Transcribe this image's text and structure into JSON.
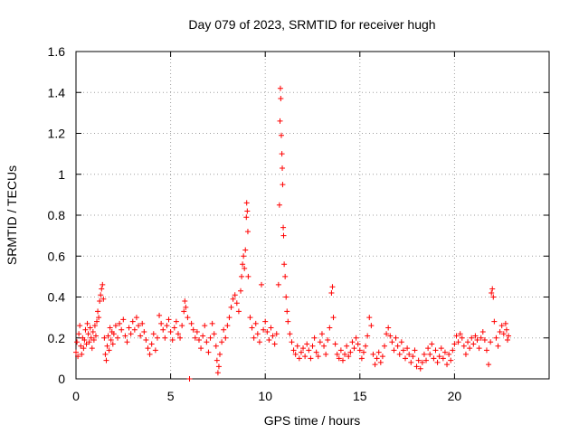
{
  "chart_data": {
    "type": "scatter",
    "title": "Day 079 of 2023, SRMTID for receiver hugh",
    "xlabel": "GPS time / hours",
    "ylabel": "SRMTID / TECUs",
    "xlim": [
      0,
      25
    ],
    "ylim": [
      0,
      1.6
    ],
    "xticks": [
      0,
      5,
      10,
      15,
      20
    ],
    "xtick_labels": [
      "0",
      "5",
      "10",
      "15",
      "20"
    ],
    "yticks": [
      0,
      0.2,
      0.4,
      0.6,
      0.8,
      1.0,
      1.2,
      1.4,
      1.6
    ],
    "ytick_labels": [
      "0",
      "0.2",
      "0.4",
      "0.6",
      "0.8",
      "1",
      "1.2",
      "1.4",
      "1.6"
    ],
    "grid": true,
    "marker": "+",
    "color": "#ff0000",
    "series": [
      {
        "name": "SRMTID",
        "points": [
          [
            0.0,
            0.13
          ],
          [
            0.05,
            0.18
          ],
          [
            0.1,
            0.11
          ],
          [
            0.15,
            0.22
          ],
          [
            0.2,
            0.26
          ],
          [
            0.25,
            0.16
          ],
          [
            0.3,
            0.12
          ],
          [
            0.35,
            0.2
          ],
          [
            0.4,
            0.15
          ],
          [
            0.45,
            0.19
          ],
          [
            0.5,
            0.24
          ],
          [
            0.55,
            0.17
          ],
          [
            0.6,
            0.27
          ],
          [
            0.65,
            0.22
          ],
          [
            0.7,
            0.18
          ],
          [
            0.75,
            0.25
          ],
          [
            0.8,
            0.2
          ],
          [
            0.85,
            0.15
          ],
          [
            0.9,
            0.23
          ],
          [
            0.95,
            0.19
          ],
          [
            1.0,
            0.26
          ],
          [
            1.05,
            0.21
          ],
          [
            1.1,
            0.28
          ],
          [
            1.15,
            0.33
          ],
          [
            1.2,
            0.3
          ],
          [
            1.25,
            0.38
          ],
          [
            1.3,
            0.41
          ],
          [
            1.35,
            0.44
          ],
          [
            1.4,
            0.46
          ],
          [
            1.45,
            0.39
          ],
          [
            1.5,
            0.2
          ],
          [
            1.55,
            0.12
          ],
          [
            1.6,
            0.09
          ],
          [
            1.65,
            0.16
          ],
          [
            1.7,
            0.21
          ],
          [
            1.75,
            0.14
          ],
          [
            1.8,
            0.25
          ],
          [
            1.85,
            0.19
          ],
          [
            1.9,
            0.23
          ],
          [
            1.95,
            0.17
          ],
          [
            2.0,
            0.22
          ],
          [
            2.1,
            0.26
          ],
          [
            2.2,
            0.2
          ],
          [
            2.3,
            0.27
          ],
          [
            2.4,
            0.24
          ],
          [
            2.5,
            0.29
          ],
          [
            2.6,
            0.21
          ],
          [
            2.7,
            0.18
          ],
          [
            2.8,
            0.25
          ],
          [
            2.9,
            0.22
          ],
          [
            3.0,
            0.28
          ],
          [
            3.1,
            0.24
          ],
          [
            3.2,
            0.3
          ],
          [
            3.3,
            0.26
          ],
          [
            3.4,
            0.21
          ],
          [
            3.5,
            0.27
          ],
          [
            3.6,
            0.23
          ],
          [
            3.7,
            0.19
          ],
          [
            3.8,
            0.15
          ],
          [
            3.9,
            0.12
          ],
          [
            4.0,
            0.17
          ],
          [
            4.1,
            0.22
          ],
          [
            4.2,
            0.14
          ],
          [
            4.3,
            0.2
          ],
          [
            4.4,
            0.31
          ],
          [
            4.5,
            0.27
          ],
          [
            4.6,
            0.24
          ],
          [
            4.7,
            0.2
          ],
          [
            4.8,
            0.26
          ],
          [
            4.9,
            0.29
          ],
          [
            5.0,
            0.23
          ],
          [
            5.1,
            0.19
          ],
          [
            5.2,
            0.25
          ],
          [
            5.3,
            0.28
          ],
          [
            5.4,
            0.22
          ],
          [
            5.5,
            0.2
          ],
          [
            5.6,
            0.26
          ],
          [
            5.7,
            0.33
          ],
          [
            5.75,
            0.38
          ],
          [
            5.8,
            0.35
          ],
          [
            5.9,
            0.3
          ],
          [
            6.0,
            0.0
          ],
          [
            6.1,
            0.27
          ],
          [
            6.2,
            0.24
          ],
          [
            6.3,
            0.2
          ],
          [
            6.4,
            0.23
          ],
          [
            6.5,
            0.19
          ],
          [
            6.6,
            0.15
          ],
          [
            6.7,
            0.21
          ],
          [
            6.8,
            0.26
          ],
          [
            6.9,
            0.18
          ],
          [
            7.0,
            0.13
          ],
          [
            7.1,
            0.2
          ],
          [
            7.2,
            0.27
          ],
          [
            7.3,
            0.22
          ],
          [
            7.4,
            0.16
          ],
          [
            7.45,
            0.09
          ],
          [
            7.5,
            0.03
          ],
          [
            7.55,
            0.06
          ],
          [
            7.6,
            0.12
          ],
          [
            7.7,
            0.18
          ],
          [
            7.8,
            0.24
          ],
          [
            7.9,
            0.2
          ],
          [
            8.0,
            0.26
          ],
          [
            8.1,
            0.3
          ],
          [
            8.2,
            0.35
          ],
          [
            8.3,
            0.39
          ],
          [
            8.4,
            0.41
          ],
          [
            8.5,
            0.37
          ],
          [
            8.6,
            0.33
          ],
          [
            8.7,
            0.43
          ],
          [
            8.75,
            0.5
          ],
          [
            8.8,
            0.56
          ],
          [
            8.85,
            0.6
          ],
          [
            8.9,
            0.54
          ],
          [
            8.95,
            0.63
          ],
          [
            9.0,
            0.79
          ],
          [
            9.02,
            0.86
          ],
          [
            9.05,
            0.82
          ],
          [
            9.08,
            0.72
          ],
          [
            9.1,
            0.5
          ],
          [
            9.2,
            0.3
          ],
          [
            9.3,
            0.25
          ],
          [
            9.4,
            0.2
          ],
          [
            9.5,
            0.27
          ],
          [
            9.6,
            0.22
          ],
          [
            9.7,
            0.18
          ],
          [
            9.8,
            0.46
          ],
          [
            9.9,
            0.24
          ],
          [
            10.0,
            0.28
          ],
          [
            10.1,
            0.23
          ],
          [
            10.2,
            0.19
          ],
          [
            10.3,
            0.25
          ],
          [
            10.4,
            0.21
          ],
          [
            10.5,
            0.17
          ],
          [
            10.6,
            0.22
          ],
          [
            10.7,
            0.46
          ],
          [
            10.75,
            0.85
          ],
          [
            10.78,
            1.26
          ],
          [
            10.8,
            1.42
          ],
          [
            10.82,
            1.37
          ],
          [
            10.85,
            1.19
          ],
          [
            10.88,
            1.1
          ],
          [
            10.9,
            1.03
          ],
          [
            10.92,
            0.95
          ],
          [
            10.95,
            0.74
          ],
          [
            10.97,
            0.7
          ],
          [
            11.0,
            0.56
          ],
          [
            11.05,
            0.5
          ],
          [
            11.1,
            0.4
          ],
          [
            11.15,
            0.33
          ],
          [
            11.2,
            0.28
          ],
          [
            11.3,
            0.22
          ],
          [
            11.4,
            0.18
          ],
          [
            11.5,
            0.14
          ],
          [
            11.6,
            0.12
          ],
          [
            11.7,
            0.16
          ],
          [
            11.8,
            0.1
          ],
          [
            11.9,
            0.13
          ],
          [
            12.0,
            0.15
          ],
          [
            12.1,
            0.11
          ],
          [
            12.2,
            0.17
          ],
          [
            12.3,
            0.14
          ],
          [
            12.4,
            0.1
          ],
          [
            12.5,
            0.16
          ],
          [
            12.6,
            0.2
          ],
          [
            12.7,
            0.13
          ],
          [
            12.8,
            0.11
          ],
          [
            12.9,
            0.18
          ],
          [
            13.0,
            0.22
          ],
          [
            13.1,
            0.16
          ],
          [
            13.2,
            0.12
          ],
          [
            13.3,
            0.19
          ],
          [
            13.4,
            0.25
          ],
          [
            13.5,
            0.42
          ],
          [
            13.55,
            0.45
          ],
          [
            13.6,
            0.3
          ],
          [
            13.7,
            0.17
          ],
          [
            13.8,
            0.12
          ],
          [
            13.9,
            0.1
          ],
          [
            14.0,
            0.14
          ],
          [
            14.1,
            0.09
          ],
          [
            14.2,
            0.12
          ],
          [
            14.3,
            0.16
          ],
          [
            14.4,
            0.11
          ],
          [
            14.5,
            0.13
          ],
          [
            14.6,
            0.18
          ],
          [
            14.7,
            0.15
          ],
          [
            14.8,
            0.2
          ],
          [
            14.9,
            0.17
          ],
          [
            15.0,
            0.14
          ],
          [
            15.1,
            0.1
          ],
          [
            15.2,
            0.13
          ],
          [
            15.3,
            0.16
          ],
          [
            15.4,
            0.21
          ],
          [
            15.5,
            0.3
          ],
          [
            15.6,
            0.26
          ],
          [
            15.7,
            0.12
          ],
          [
            15.8,
            0.07
          ],
          [
            15.9,
            0.1
          ],
          [
            16.0,
            0.13
          ],
          [
            16.1,
            0.08
          ],
          [
            16.2,
            0.11
          ],
          [
            16.3,
            0.16
          ],
          [
            16.4,
            0.22
          ],
          [
            16.5,
            0.25
          ],
          [
            16.6,
            0.21
          ],
          [
            16.7,
            0.18
          ],
          [
            16.8,
            0.14
          ],
          [
            16.9,
            0.2
          ],
          [
            17.0,
            0.16
          ],
          [
            17.1,
            0.12
          ],
          [
            17.2,
            0.18
          ],
          [
            17.3,
            0.14
          ],
          [
            17.4,
            0.1
          ],
          [
            17.5,
            0.15
          ],
          [
            17.6,
            0.12
          ],
          [
            17.7,
            0.08
          ],
          [
            17.8,
            0.11
          ],
          [
            17.9,
            0.14
          ],
          [
            18.0,
            0.06
          ],
          [
            18.1,
            0.09
          ],
          [
            18.2,
            0.05
          ],
          [
            18.3,
            0.08
          ],
          [
            18.4,
            0.12
          ],
          [
            18.5,
            0.09
          ],
          [
            18.6,
            0.15
          ],
          [
            18.7,
            0.12
          ],
          [
            18.8,
            0.17
          ],
          [
            18.9,
            0.1
          ],
          [
            19.0,
            0.14
          ],
          [
            19.1,
            0.08
          ],
          [
            19.2,
            0.11
          ],
          [
            19.3,
            0.15
          ],
          [
            19.4,
            0.1
          ],
          [
            19.5,
            0.13
          ],
          [
            19.6,
            0.07
          ],
          [
            19.7,
            0.12
          ],
          [
            19.8,
            0.09
          ],
          [
            19.9,
            0.14
          ],
          [
            20.0,
            0.17
          ],
          [
            20.1,
            0.21
          ],
          [
            20.2,
            0.18
          ],
          [
            20.3,
            0.22
          ],
          [
            20.4,
            0.2
          ],
          [
            20.5,
            0.16
          ],
          [
            20.6,
            0.12
          ],
          [
            20.7,
            0.18
          ],
          [
            20.8,
            0.15
          ],
          [
            20.9,
            0.2
          ],
          [
            21.0,
            0.17
          ],
          [
            21.1,
            0.21
          ],
          [
            21.2,
            0.19
          ],
          [
            21.3,
            0.15
          ],
          [
            21.4,
            0.2
          ],
          [
            21.5,
            0.23
          ],
          [
            21.6,
            0.19
          ],
          [
            21.7,
            0.14
          ],
          [
            21.8,
            0.07
          ],
          [
            21.9,
            0.18
          ],
          [
            21.95,
            0.42
          ],
          [
            22.0,
            0.44
          ],
          [
            22.05,
            0.4
          ],
          [
            22.1,
            0.28
          ],
          [
            22.2,
            0.2
          ],
          [
            22.3,
            0.16
          ],
          [
            22.4,
            0.23
          ],
          [
            22.5,
            0.26
          ],
          [
            22.6,
            0.22
          ],
          [
            22.7,
            0.27
          ],
          [
            22.75,
            0.24
          ],
          [
            22.8,
            0.19
          ],
          [
            22.85,
            0.21
          ]
        ]
      }
    ]
  }
}
